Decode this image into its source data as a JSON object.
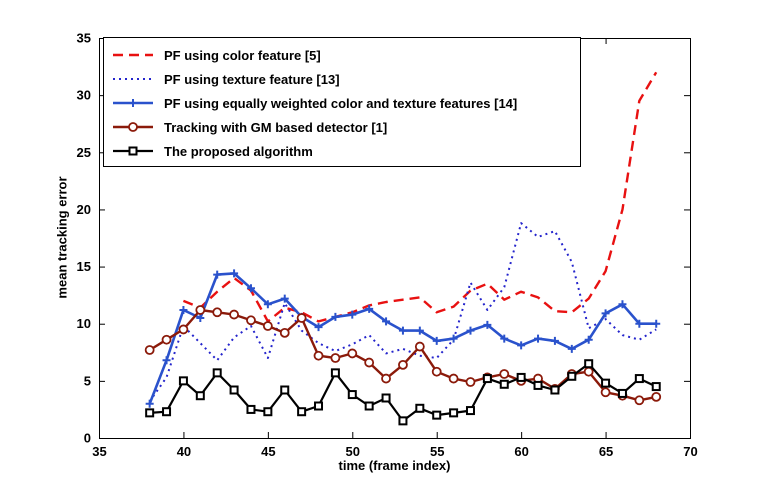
{
  "figure": {
    "background": "#ffffff"
  },
  "chart_data": {
    "type": "line",
    "title": "",
    "xlabel": "time (frame index)",
    "ylabel": "mean tracking error",
    "xlim": [
      35,
      70
    ],
    "ylim": [
      0,
      35
    ],
    "xticks": [
      35,
      40,
      45,
      50,
      55,
      60,
      65,
      70
    ],
    "yticks": [
      0,
      5,
      10,
      15,
      20,
      25,
      30,
      35
    ],
    "grid": false,
    "legend_position": "top-left",
    "x": [
      38,
      39,
      40,
      41,
      42,
      43,
      44,
      45,
      46,
      47,
      48,
      49,
      50,
      51,
      52,
      53,
      54,
      55,
      56,
      57,
      58,
      59,
      60,
      61,
      62,
      63,
      64,
      65,
      66,
      67,
      68
    ],
    "series": [
      {
        "name": "PF using color feature [5]",
        "color": "#e81111",
        "line": "dashed",
        "marker": "none",
        "values": [
          null,
          null,
          12.0,
          11.4,
          12.8,
          14.0,
          12.9,
          10.2,
          11.4,
          11.0,
          10.2,
          10.6,
          11.0,
          11.6,
          11.9,
          12.1,
          12.3,
          11.0,
          11.5,
          12.9,
          13.5,
          12.1,
          12.8,
          12.3,
          11.1,
          11.0,
          12.2,
          14.6,
          20.0,
          29.5,
          32.0
        ]
      },
      {
        "name": "PF using texture feature [13]",
        "color": "#2424cc",
        "line": "dotted",
        "marker": "none",
        "values": [
          3.2,
          5.3,
          9.8,
          8.3,
          6.8,
          8.8,
          9.8,
          7.0,
          11.8,
          9.4,
          8.3,
          7.6,
          8.2,
          9.0,
          7.4,
          7.8,
          7.2,
          7.0,
          8.6,
          13.6,
          11.2,
          13.2,
          18.8,
          17.6,
          18.1,
          15.4,
          9.6,
          10.4,
          9.0,
          8.6,
          9.5
        ]
      },
      {
        "name": "PF using equally weighted color and texture features [14]",
        "color": "#2a52cc",
        "line": "solid",
        "marker": "plus",
        "values": [
          3.0,
          6.8,
          11.2,
          10.5,
          14.3,
          14.4,
          13.1,
          11.7,
          12.2,
          10.6,
          9.7,
          10.6,
          10.8,
          11.3,
          10.2,
          9.4,
          9.4,
          8.5,
          8.7,
          9.4,
          9.9,
          8.7,
          8.1,
          8.7,
          8.5,
          7.8,
          8.6,
          10.9,
          11.7,
          10.0,
          10.0
        ]
      },
      {
        "name": "Tracking with GM based detector [1]",
        "color": "#8b1a0a",
        "line": "solid",
        "marker": "circle",
        "values": [
          7.7,
          8.6,
          9.5,
          11.2,
          11.0,
          10.8,
          10.3,
          9.8,
          9.2,
          10.5,
          7.2,
          7.0,
          7.4,
          6.6,
          5.2,
          6.4,
          8.0,
          5.8,
          5.2,
          4.9,
          5.3,
          5.6,
          5.0,
          5.2,
          4.3,
          5.6,
          5.8,
          4.0,
          3.7,
          3.3,
          3.6
        ]
      },
      {
        "name": "The proposed algorithm",
        "color": "#000000",
        "line": "solid",
        "marker": "square",
        "values": [
          2.2,
          2.3,
          5.0,
          3.7,
          5.7,
          4.2,
          2.5,
          2.3,
          4.2,
          2.3,
          2.8,
          5.7,
          3.8,
          2.8,
          3.5,
          1.5,
          2.6,
          2.0,
          2.2,
          2.4,
          5.2,
          4.7,
          5.3,
          4.6,
          4.2,
          5.4,
          6.5,
          4.8,
          3.9,
          5.2,
          4.5
        ]
      }
    ]
  }
}
